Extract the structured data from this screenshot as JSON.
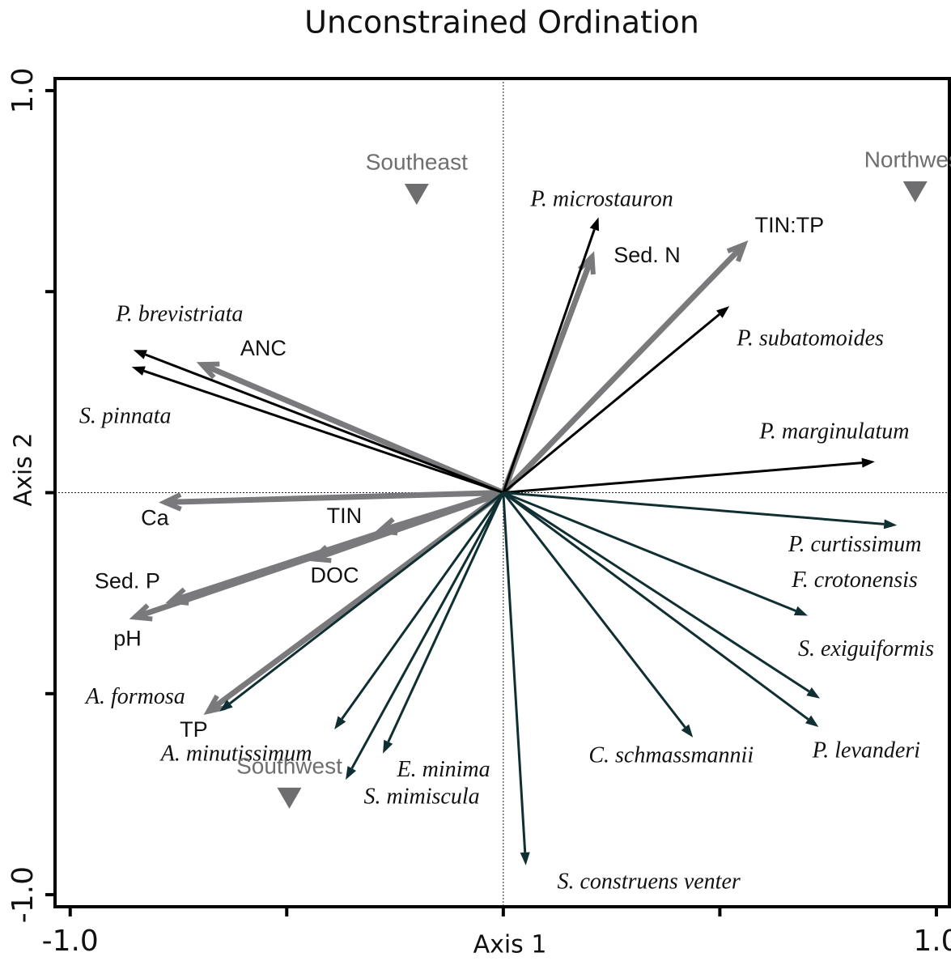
{
  "chart_data": {
    "type": "biplot",
    "title": "Unconstrained Ordination",
    "x_label": "Axis 1",
    "y_label": "Axis 2",
    "xlim": [
      -1.035,
      1.03
    ],
    "ylim": [
      -1.03,
      1.03
    ],
    "xticks": [
      {
        "value": -1.0,
        "label": "-1.0"
      },
      {
        "value": -0.5,
        "label": null
      },
      {
        "value": 0,
        "label": null
      },
      {
        "value": 0.5,
        "label": null
      },
      {
        "value": 1.0,
        "label": "1.0"
      }
    ],
    "yticks": [
      {
        "value": -1.0,
        "label": "-1.0"
      },
      {
        "value": -0.5,
        "label": null
      },
      {
        "value": 0,
        "label": null
      },
      {
        "value": 0.5,
        "label": null
      },
      {
        "value": 1.0,
        "label": "1.0"
      }
    ],
    "zero_lines": true,
    "arrows": [
      {
        "color": "#000000",
        "head": "filled",
        "label_style": "italic",
        "labels": [
          "P. microstauron",
          "P. subatomoides",
          "P. marginulatum",
          "P. brevistriata",
          "S. pinnata"
        ],
        "x": [
          0.22,
          0.522,
          0.858,
          -0.854,
          -0.858
        ],
        "y": [
          0.685,
          0.464,
          0.077,
          0.355,
          0.313
        ]
      },
      {
        "color": "#0f2f33",
        "head": "filled",
        "label_style": "italic",
        "labels": [
          "P. curtissimum",
          "F. crotonensis",
          "S. exiguiformis",
          "P. levanderi",
          "C. schmassmannii",
          "S. construens venter",
          "E. minima",
          "S. mimiscula",
          "A. minutissimum",
          "A. formosa"
        ],
        "x": [
          0.909,
          0.703,
          0.731,
          0.728,
          0.438,
          0.052,
          -0.278,
          -0.364,
          -0.39,
          -0.655
        ],
        "y": [
          -0.081,
          -0.306,
          -0.512,
          -0.583,
          -0.609,
          -0.927,
          -0.649,
          -0.714,
          -0.589,
          -0.544
        ]
      },
      {
        "color": "#7a7a7c",
        "head": "open",
        "label_style": "normal",
        "labels": [
          "Sed. N",
          "TIN:TP",
          "ANC",
          "Ca",
          "TIN",
          "DOC",
          "Sed. P",
          "pH",
          "TP"
        ],
        "x": [
          0.205,
          0.556,
          -0.696,
          -0.782,
          -0.285,
          -0.438,
          -0.767,
          -0.851,
          -0.681
        ],
        "y": [
          0.587,
          0.617,
          0.319,
          -0.024,
          -0.095,
          -0.165,
          -0.27,
          -0.31,
          -0.544
        ]
      }
    ],
    "points": {
      "color": "#6e6e70",
      "marker": "triangle-down",
      "labels": [
        "Southeast",
        "Northwest",
        "Southwest"
      ],
      "x": [
        -0.2,
        0.951,
        -0.494
      ],
      "y": [
        0.742,
        0.748,
        -0.76
      ]
    }
  }
}
